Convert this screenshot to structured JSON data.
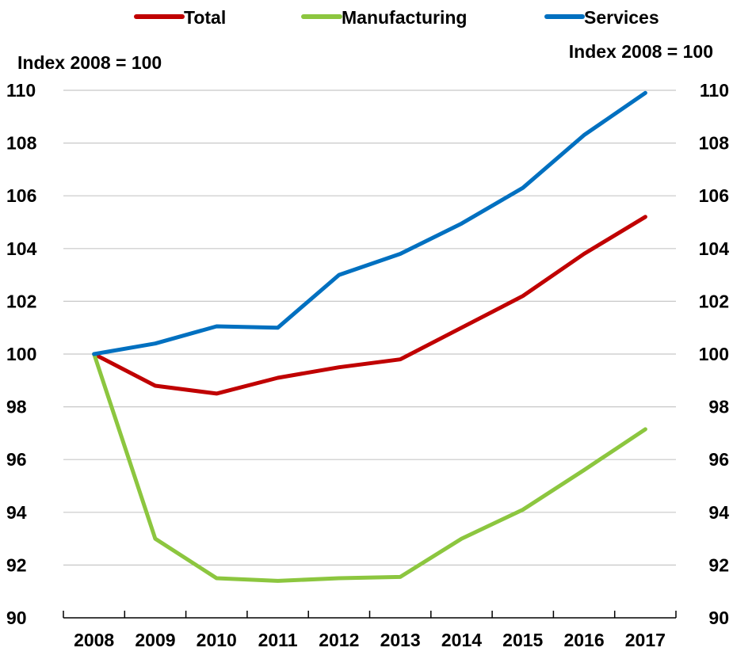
{
  "chart_data": {
    "type": "line",
    "y_unit_left": "Index 2008 = 100",
    "y_unit_right": "Index 2008 = 100",
    "x": [
      "2008",
      "2009",
      "2010",
      "2011",
      "2012",
      "2013",
      "2014",
      "2015",
      "2016",
      "2017"
    ],
    "ylim": [
      90,
      110
    ],
    "y_ticks": [
      90,
      92,
      94,
      96,
      98,
      100,
      102,
      104,
      106,
      108,
      110
    ],
    "grid": true,
    "dual_y_axis": true,
    "legend_position": "top",
    "series": [
      {
        "name": "Total",
        "color": "#c00000",
        "values": [
          100.0,
          98.8,
          98.5,
          99.1,
          99.5,
          99.8,
          101.0,
          102.2,
          103.8,
          105.2
        ]
      },
      {
        "name": "Manufacturing",
        "color": "#8cc63f",
        "values": [
          100.0,
          93.0,
          91.5,
          91.4,
          91.5,
          91.55,
          93.0,
          94.1,
          95.6,
          97.15
        ]
      },
      {
        "name": "Services",
        "color": "#0070c0",
        "values": [
          100.0,
          100.4,
          101.05,
          101.0,
          103.0,
          103.8,
          104.95,
          106.3,
          108.3,
          109.9
        ]
      }
    ]
  }
}
